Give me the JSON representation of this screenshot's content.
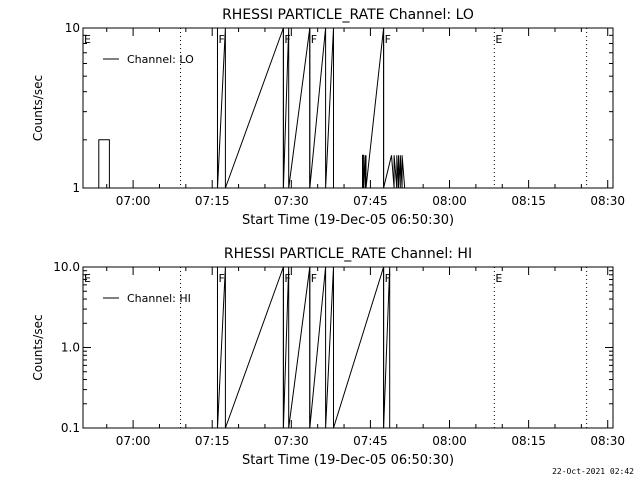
{
  "footer": {
    "timestamp": "22-Oct-2021 02:42"
  },
  "chart_data": [
    {
      "type": "line",
      "title": "RHESSI PARTICLE_RATE Channel: LO",
      "xlabel": "Start Time (19-Dec-05 06:50:30)",
      "ylabel": "Counts/sec",
      "yscale": "log",
      "xlim": [
        "06:50:30",
        "08:31:00"
      ],
      "ylim": [
        1,
        10
      ],
      "xticks": [
        "07:00",
        "07:15",
        "07:30",
        "07:45",
        "08:00",
        "08:15",
        "08:30"
      ],
      "yticks": [
        {
          "value": 1,
          "label": "1"
        },
        {
          "value": 10,
          "label": "10"
        }
      ],
      "legend": {
        "label": "Channel: LO",
        "placement": "top-left"
      },
      "series": [
        {
          "name": "Channel: LO",
          "x": [
            "06:50:30",
            "06:53:30",
            "06:53:30",
            "06:55:30",
            "06:55:30",
            "07:16:00",
            "07:16:00",
            "07:16:00",
            "07:17:30",
            "07:17:30",
            "07:28:30",
            "07:28:30",
            "07:29:30",
            "07:29:30",
            "07:33:30",
            "07:33:30",
            "07:36:30",
            "07:36:30",
            "07:38:00",
            "07:38:00",
            "07:43:30",
            "07:43:30",
            "07:43:40",
            "07:43:40",
            "07:44:00",
            "07:44:00",
            "07:44:10",
            "07:44:10",
            "07:47:30",
            "07:47:30",
            "07:49:00",
            "07:49:00",
            "07:49:30",
            "07:49:30",
            "07:50:00",
            "07:50:00",
            "07:50:20",
            "07:50:20",
            "07:50:40",
            "07:50:40",
            "07:51:00",
            "07:51:00",
            "07:51:30",
            "07:51:30",
            "08:31:00"
          ],
          "y": [
            1,
            1,
            2,
            2,
            1,
            1,
            10,
            1,
            10,
            1,
            10,
            1,
            10,
            1,
            10,
            1,
            10,
            1,
            10,
            1,
            1,
            1.6,
            1.6,
            1,
            1.6,
            1,
            1.6,
            1,
            10,
            1,
            1.6,
            1.6,
            1,
            1.6,
            1,
            1.6,
            1,
            1.6,
            1,
            1.6,
            1,
            1.6,
            1,
            1,
            1
          ]
        }
      ],
      "markers": [
        {
          "label": "E",
          "x": "06:50:30",
          "style": "none"
        },
        {
          "label": "",
          "x": "07:09:00",
          "style": "dotted"
        },
        {
          "label": "F",
          "x": "07:16:00",
          "style": "solid"
        },
        {
          "label": "F",
          "x": "07:28:30",
          "style": "solid"
        },
        {
          "label": "F",
          "x": "07:33:30",
          "style": "solid"
        },
        {
          "label": "F",
          "x": "07:47:30",
          "style": "solid"
        },
        {
          "label": "E",
          "x": "08:08:30",
          "style": "dotted"
        },
        {
          "label": "",
          "x": "08:26:00",
          "style": "dotted"
        }
      ]
    },
    {
      "type": "line",
      "title": "RHESSI PARTICLE_RATE Channel: HI",
      "xlabel": "Start Time (19-Dec-05 06:50:30)",
      "ylabel": "Counts/sec",
      "yscale": "log",
      "xlim": [
        "06:50:30",
        "08:31:00"
      ],
      "ylim": [
        0.1,
        10
      ],
      "xticks": [
        "07:00",
        "07:15",
        "07:30",
        "07:45",
        "08:00",
        "08:15",
        "08:30"
      ],
      "yticks": [
        {
          "value": 0.1,
          "label": "0.1"
        },
        {
          "value": 1,
          "label": "1.0"
        },
        {
          "value": 10,
          "label": "10.0"
        }
      ],
      "legend": {
        "label": "Channel: HI",
        "placement": "top-left"
      },
      "series": [
        {
          "name": "Channel: HI",
          "x": [
            "06:50:30",
            "07:16:00",
            "07:16:00",
            "07:16:00",
            "07:17:30",
            "07:17:30",
            "07:28:30",
            "07:28:30",
            "07:29:30",
            "07:29:30",
            "07:33:30",
            "07:33:30",
            "07:36:30",
            "07:36:30",
            "07:38:00",
            "07:38:00",
            "07:47:30",
            "07:47:30",
            "07:48:40",
            "07:48:40",
            "08:31:00"
          ],
          "y": [
            0.1,
            0.1,
            10,
            0.1,
            10,
            0.1,
            10,
            0.1,
            10,
            0.1,
            10,
            0.1,
            10,
            0.1,
            10,
            0.1,
            10,
            0.1,
            10,
            0.1,
            0.1
          ]
        }
      ],
      "markers": [
        {
          "label": "E",
          "x": "06:50:30",
          "style": "none"
        },
        {
          "label": "",
          "x": "07:09:00",
          "style": "dotted"
        },
        {
          "label": "F",
          "x": "07:16:00",
          "style": "solid"
        },
        {
          "label": "F",
          "x": "07:28:30",
          "style": "solid"
        },
        {
          "label": "F",
          "x": "07:33:30",
          "style": "solid"
        },
        {
          "label": "F",
          "x": "07:47:30",
          "style": "solid"
        },
        {
          "label": "E",
          "x": "08:08:30",
          "style": "dotted"
        },
        {
          "label": "",
          "x": "08:26:00",
          "style": "dotted"
        }
      ]
    }
  ]
}
